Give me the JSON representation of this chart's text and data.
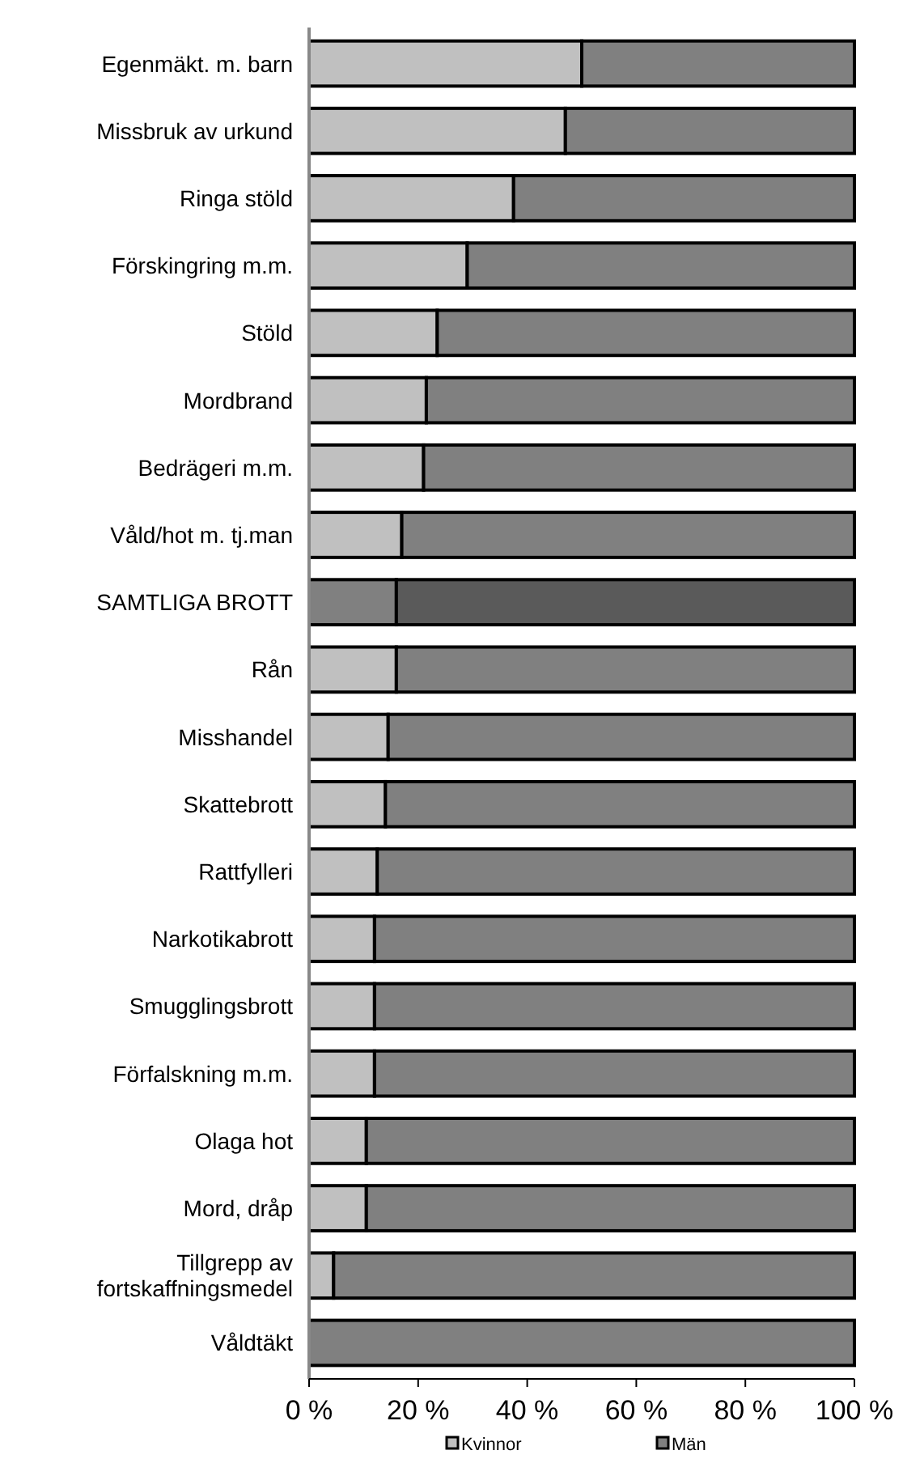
{
  "chart_data": {
    "type": "bar",
    "orientation": "horizontal",
    "stacked": true,
    "categories": [
      "Egenmäkt. m.  barn",
      "Missbruk av urkund",
      "Ringa stöld",
      "Förskingring m.m.",
      "Stöld",
      "Mordbrand",
      "Bedrägeri m.m.",
      "Våld/hot m. tj.man",
      "SAMTLIGA BROTT",
      "Rån",
      "Misshandel",
      "Skattebrott",
      "Rattfylleri",
      "Narkotikabrott",
      "Smugglingsbrott",
      "Förfalskning m.m.",
      "Olaga hot",
      "Mord, dråp",
      "Tillgrepp av fortskaffningsmedel",
      "Våldtäkt"
    ],
    "series": [
      {
        "name": "Kvinnor",
        "color": "#c0c0c0",
        "colors": [
          "#c0c0c0",
          "#c0c0c0",
          "#c0c0c0",
          "#c0c0c0",
          "#c0c0c0",
          "#c0c0c0",
          "#c0c0c0",
          "#c0c0c0",
          "#808080",
          "#c0c0c0",
          "#c0c0c0",
          "#c0c0c0",
          "#c0c0c0",
          "#c0c0c0",
          "#c0c0c0",
          "#c0c0c0",
          "#c0c0c0",
          "#c0c0c0",
          "#c0c0c0",
          null
        ],
        "values": [
          50,
          47,
          37.5,
          29,
          23.5,
          21.5,
          21,
          17,
          16,
          16,
          14.5,
          14,
          12.5,
          12,
          12,
          12,
          10.5,
          10.5,
          4.5,
          null
        ]
      },
      {
        "name": "Män",
        "color": "#808080",
        "colors": [
          "#808080",
          "#808080",
          "#808080",
          "#808080",
          "#808080",
          "#808080",
          "#808080",
          "#808080",
          "#5a5a5a",
          "#808080",
          "#808080",
          "#808080",
          "#808080",
          "#808080",
          "#808080",
          "#808080",
          "#808080",
          "#808080",
          "#808080",
          "#808080"
        ],
        "values": [
          50,
          53,
          62.5,
          71,
          76.5,
          78.5,
          79,
          83,
          84,
          84,
          85.5,
          86,
          87.5,
          88,
          88,
          88,
          89.5,
          89.5,
          95.5,
          100
        ]
      }
    ],
    "xlim": [
      0,
      100
    ],
    "xticks": [
      {
        "value": 0,
        "label": "0 %"
      },
      {
        "value": 20,
        "label": "20 %"
      },
      {
        "value": 40,
        "label": "40 %"
      },
      {
        "value": 60,
        "label": "60 %"
      },
      {
        "value": 80,
        "label": "80 %"
      },
      {
        "value": 100,
        "label": "100 %"
      }
    ],
    "legend": "bottom"
  }
}
